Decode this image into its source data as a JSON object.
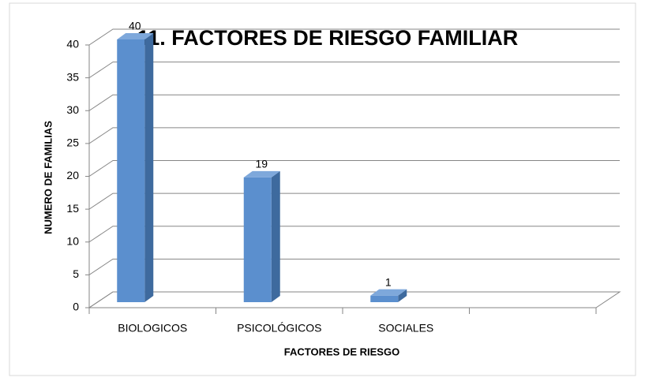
{
  "chart_data": {
    "type": "bar3d",
    "title": "11. FACTORES DE RIESGO FAMILIAR",
    "x_label": "FACTORES DE RIESGO",
    "y_label": "NUMERO DE FAMILIAS",
    "categories": [
      "BIOLOGICOS",
      "PSICOLÓGICOS",
      "SOCIALES",
      null
    ],
    "values": [
      40,
      19,
      1,
      null
    ],
    "color": "#5b8fce",
    "ylim": [
      0,
      40
    ],
    "yticks": [
      0,
      5,
      10,
      15,
      20,
      25,
      30,
      35,
      40
    ],
    "grid": true
  }
}
